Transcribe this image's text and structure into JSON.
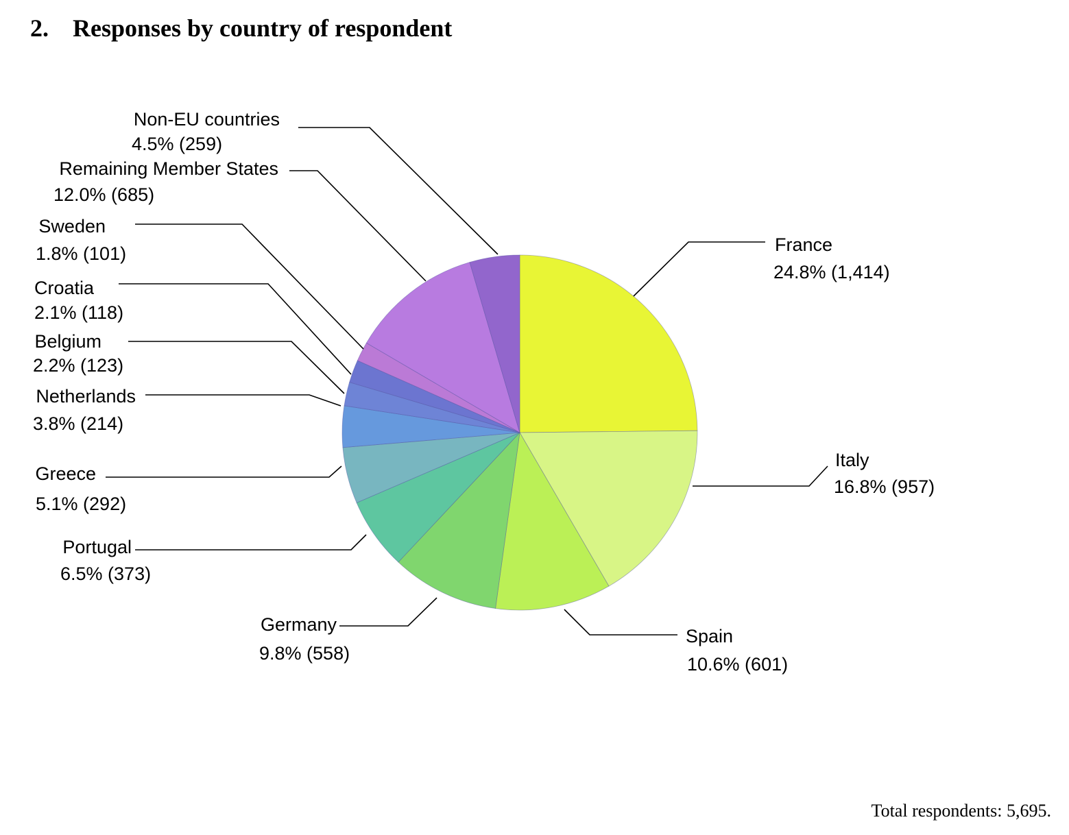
{
  "page": {
    "section_number": "2.",
    "section_title": "Responses by country of respondent",
    "footer_label": "Total respondents: 5,695."
  },
  "chart_data": {
    "type": "pie",
    "start": "12 o'clock, clockwise",
    "total": 5695,
    "slices": [
      {
        "label": "France",
        "percent": 24.8,
        "count": 1414,
        "value_text": "24.8% (1,414)",
        "color": "#e8f535"
      },
      {
        "label": "Italy",
        "percent": 16.8,
        "count": 957,
        "value_text": "16.8% (957)",
        "color": "#d8f586"
      },
      {
        "label": "Spain",
        "percent": 10.6,
        "count": 601,
        "value_text": "10.6% (601)",
        "color": "#bbf056"
      },
      {
        "label": "Germany",
        "percent": 9.8,
        "count": 558,
        "value_text": "9.8% (558)",
        "color": "#80d66e"
      },
      {
        "label": "Portugal",
        "percent": 6.5,
        "count": 373,
        "value_text": "6.5% (373)",
        "color": "#5ec6a0"
      },
      {
        "label": "Greece",
        "percent": 5.1,
        "count": 292,
        "value_text": "5.1% (292)",
        "color": "#78b6c0"
      },
      {
        "label": "Netherlands",
        "percent": 3.8,
        "count": 214,
        "value_text": "3.8% (214)",
        "color": "#6699dd"
      },
      {
        "label": "Belgium",
        "percent": 2.2,
        "count": 123,
        "value_text": "2.2% (123)",
        "color": "#6e84d6"
      },
      {
        "label": "Croatia",
        "percent": 2.1,
        "count": 118,
        "value_text": "2.1% (118)",
        "color": "#6c75d0"
      },
      {
        "label": "Sweden",
        "percent": 1.8,
        "count": 101,
        "value_text": "1.8% (101)",
        "color": "#bb7ad6"
      },
      {
        "label": "Remaining Member States",
        "percent": 12.0,
        "count": 685,
        "value_text": "12.0% (685)",
        "color": "#b87be0"
      },
      {
        "label": "Non-EU countries",
        "percent": 4.5,
        "count": 259,
        "value_text": "4.5% (259)",
        "color": "#9266cc"
      }
    ]
  }
}
